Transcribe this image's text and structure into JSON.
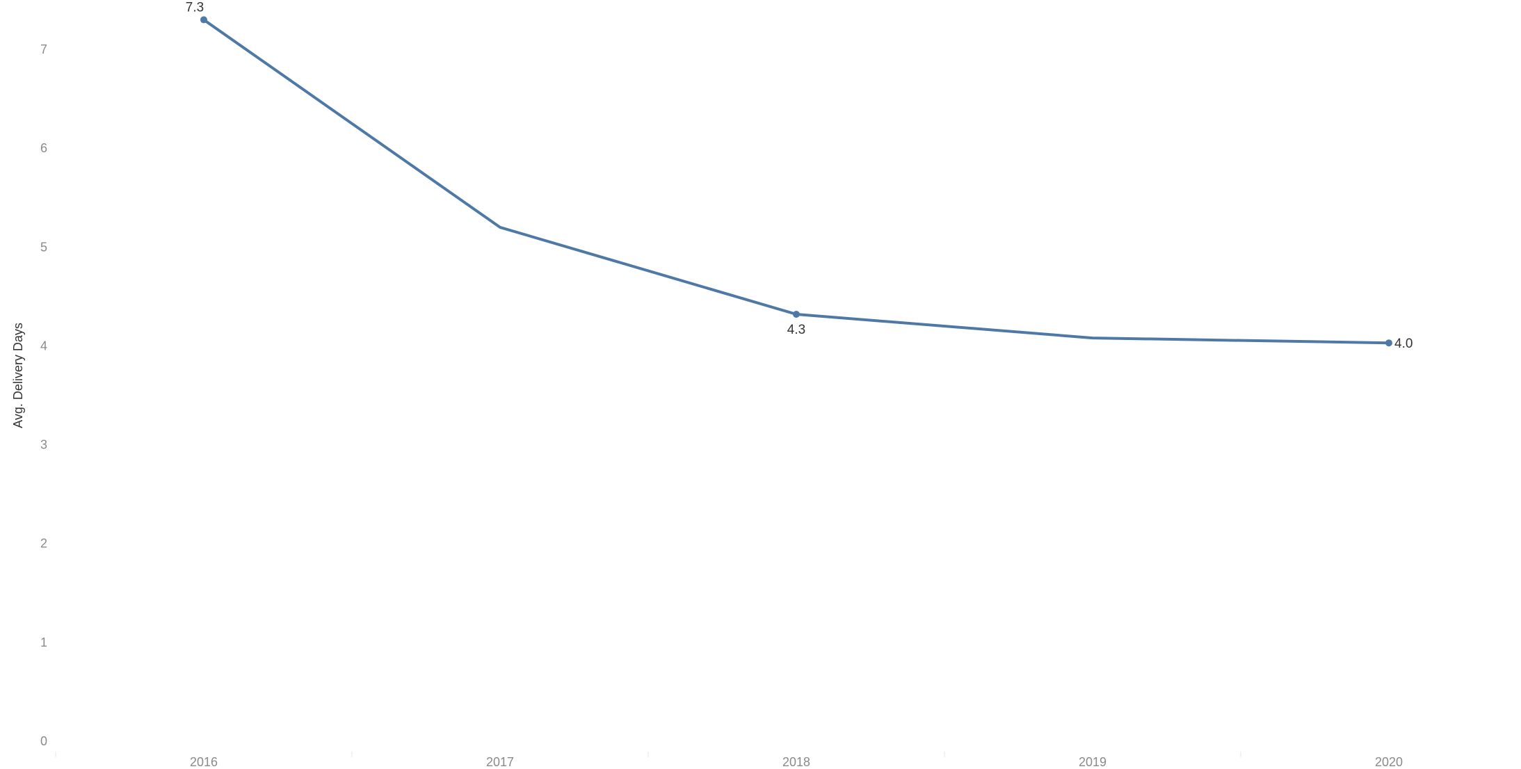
{
  "chart_data": {
    "type": "line",
    "title": "",
    "xlabel": "",
    "ylabel": "Avg. Delivery Days",
    "x": [
      "2016",
      "2017",
      "2018",
      "2019",
      "2020"
    ],
    "series": [
      {
        "values": [
          7.3,
          5.2,
          4.32,
          4.08,
          4.03
        ]
      }
    ],
    "data_labels": [
      {
        "index": 0,
        "text": "7.3",
        "position": "above"
      },
      {
        "index": 2,
        "text": "4.3",
        "position": "below"
      },
      {
        "index": 4,
        "text": "4.0",
        "position": "right"
      }
    ],
    "yticks": [
      "0",
      "1",
      "2",
      "3",
      "4",
      "5",
      "6",
      "7"
    ],
    "ylim": [
      0,
      7.5
    ],
    "grid": false,
    "legend": "none",
    "line_color": "#4e79a7"
  }
}
